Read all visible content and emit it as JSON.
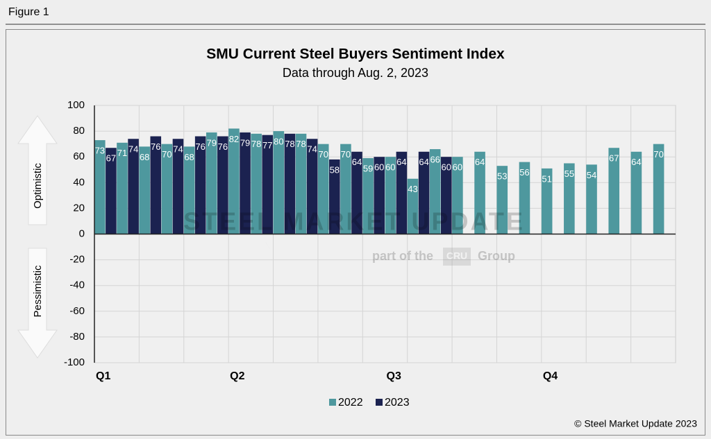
{
  "figure_label": "Figure 1",
  "chart_data": {
    "type": "bar",
    "title": "SMU Current Steel Buyers Sentiment Index",
    "subtitle": "Data through Aug. 2, 2023",
    "categories": [
      "Q1",
      null,
      null,
      null,
      null,
      null,
      "Q2",
      null,
      null,
      null,
      null,
      null,
      null,
      "Q3",
      null,
      null,
      null,
      null,
      null,
      null,
      "Q4",
      null,
      null,
      null,
      null,
      null
    ],
    "series": [
      {
        "name": "2022",
        "color": "#4e989e",
        "values": [
          73,
          71,
          68,
          70,
          68,
          79,
          82,
          78,
          80,
          78,
          70,
          70,
          59,
          60,
          43,
          66,
          60,
          64,
          53,
          56,
          51,
          55,
          54,
          67,
          64,
          70
        ]
      },
      {
        "name": "2023",
        "color": "#1b2250",
        "values": [
          67,
          74,
          76,
          74,
          76,
          76,
          79,
          77,
          78,
          74,
          58,
          64,
          60,
          64,
          64,
          60,
          null,
          null,
          null,
          null,
          null,
          null,
          null,
          null,
          null,
          null
        ]
      }
    ],
    "ylim": [
      -100,
      100
    ],
    "yticks": [
      -100,
      -80,
      -60,
      -40,
      -20,
      0,
      20,
      40,
      60,
      80,
      100
    ],
    "grid": true,
    "legend": "bottom",
    "annotations": {
      "up": "Optimistic",
      "down": "Pessimistic"
    },
    "watermark": {
      "brand": "STEEL MARKET UPDATE",
      "tagline_pre": "part of the",
      "logo": "CRU",
      "tagline_post": "Group"
    },
    "source": "© Steel Market Update 2023"
  }
}
